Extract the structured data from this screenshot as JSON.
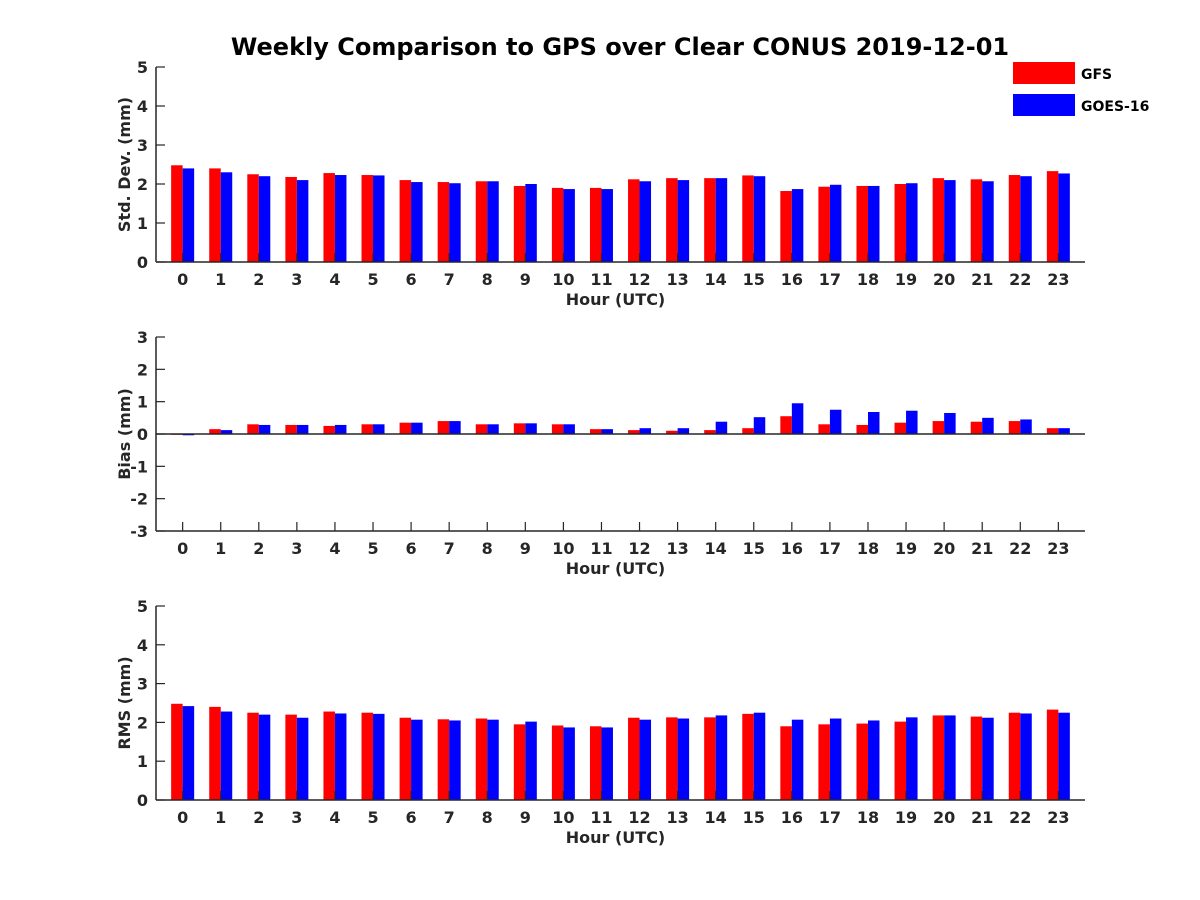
{
  "title": "Weekly Comparison to GPS over Clear CONUS 2019-12-01",
  "colors": {
    "GFS": "#ff0000",
    "GOES-16": "#0000ff",
    "axis": "#262626"
  },
  "legend": {
    "placement": "top-right",
    "entries": [
      "GFS",
      "GOES-16"
    ]
  },
  "chart_data": [
    {
      "type": "bar",
      "xlabel": "Hour (UTC)",
      "ylabel": "Std. Dev. (mm)",
      "ylim": [
        0,
        5
      ],
      "yticks": [
        "0",
        "1",
        "2",
        "3",
        "4",
        "5"
      ],
      "categories": [
        "0",
        "1",
        "2",
        "3",
        "4",
        "5",
        "6",
        "7",
        "8",
        "9",
        "10",
        "11",
        "12",
        "13",
        "14",
        "15",
        "16",
        "17",
        "18",
        "19",
        "20",
        "21",
        "22",
        "23"
      ],
      "series": [
        {
          "name": "GFS",
          "values": [
            2.48,
            2.4,
            2.25,
            2.18,
            2.28,
            2.23,
            2.1,
            2.05,
            2.07,
            1.95,
            1.9,
            1.9,
            2.12,
            2.15,
            2.15,
            2.22,
            1.82,
            1.93,
            1.95,
            2.0,
            2.15,
            2.12,
            2.23,
            2.33
          ]
        },
        {
          "name": "GOES-16",
          "values": [
            2.4,
            2.3,
            2.2,
            2.1,
            2.23,
            2.22,
            2.05,
            2.02,
            2.07,
            2.0,
            1.87,
            1.87,
            2.07,
            2.1,
            2.15,
            2.2,
            1.87,
            1.98,
            1.95,
            2.02,
            2.1,
            2.07,
            2.2,
            2.27
          ]
        }
      ]
    },
    {
      "type": "bar",
      "xlabel": "Hour (UTC)",
      "ylabel": "Bias (mm)",
      "ylim": [
        -3,
        3
      ],
      "yticks": [
        "-3",
        "-2",
        "-1",
        "0",
        "1",
        "2",
        "3"
      ],
      "categories": [
        "0",
        "1",
        "2",
        "3",
        "4",
        "5",
        "6",
        "7",
        "8",
        "9",
        "10",
        "11",
        "12",
        "13",
        "14",
        "15",
        "16",
        "17",
        "18",
        "19",
        "20",
        "21",
        "22",
        "23"
      ],
      "series": [
        {
          "name": "GFS",
          "values": [
            -0.02,
            0.15,
            0.3,
            0.28,
            0.25,
            0.3,
            0.35,
            0.4,
            0.3,
            0.33,
            0.3,
            0.15,
            0.12,
            0.1,
            0.12,
            0.18,
            0.55,
            0.3,
            0.28,
            0.35,
            0.4,
            0.38,
            0.4,
            0.18
          ]
        },
        {
          "name": "GOES-16",
          "values": [
            -0.04,
            0.12,
            0.28,
            0.28,
            0.28,
            0.3,
            0.35,
            0.4,
            0.3,
            0.33,
            0.3,
            0.15,
            0.18,
            0.18,
            0.38,
            0.52,
            0.95,
            0.75,
            0.68,
            0.72,
            0.65,
            0.5,
            0.45,
            0.18
          ]
        }
      ]
    },
    {
      "type": "bar",
      "xlabel": "Hour (UTC)",
      "ylabel": "RMS (mm)",
      "ylim": [
        0,
        5
      ],
      "yticks": [
        "0",
        "1",
        "2",
        "3",
        "4",
        "5"
      ],
      "categories": [
        "0",
        "1",
        "2",
        "3",
        "4",
        "5",
        "6",
        "7",
        "8",
        "9",
        "10",
        "11",
        "12",
        "13",
        "14",
        "15",
        "16",
        "17",
        "18",
        "19",
        "20",
        "21",
        "22",
        "23"
      ],
      "series": [
        {
          "name": "GFS",
          "values": [
            2.48,
            2.4,
            2.25,
            2.2,
            2.28,
            2.25,
            2.12,
            2.08,
            2.1,
            1.95,
            1.92,
            1.9,
            2.12,
            2.13,
            2.13,
            2.22,
            1.9,
            1.95,
            1.97,
            2.02,
            2.18,
            2.15,
            2.25,
            2.33
          ]
        },
        {
          "name": "GOES-16",
          "values": [
            2.42,
            2.28,
            2.2,
            2.12,
            2.23,
            2.22,
            2.07,
            2.05,
            2.07,
            2.02,
            1.87,
            1.87,
            2.07,
            2.1,
            2.18,
            2.25,
            2.07,
            2.1,
            2.05,
            2.13,
            2.18,
            2.12,
            2.23,
            2.25
          ]
        }
      ]
    }
  ]
}
